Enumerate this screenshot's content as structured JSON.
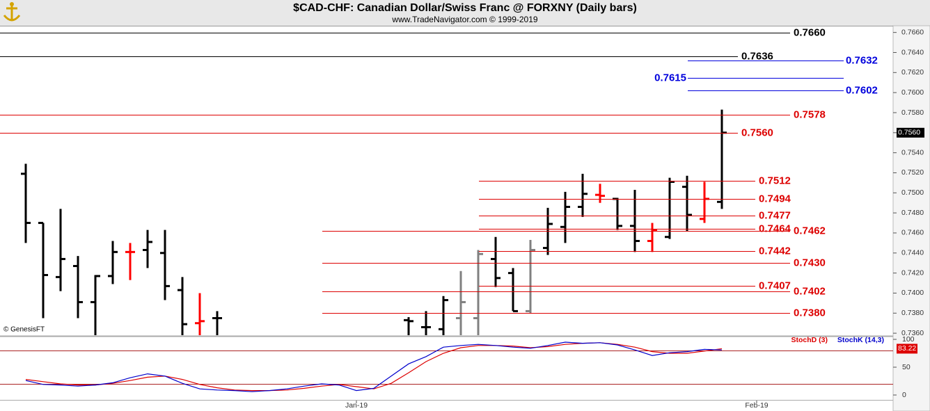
{
  "header": {
    "title": "$CAD-CHF:  Canadian Dollar/Swiss Franc @ FORXNY  (Daily bars)",
    "subtitle": "www.TradeNavigator.com © 1999-2019",
    "watermark": "© GenesisFT"
  },
  "chart_data": [
    {
      "type": "ohlc",
      "open": [
        0.7519,
        0.747,
        0.7416,
        0.7427,
        0.7391,
        0.7417,
        0.7441,
        0.7443,
        0.744,
        0.7403,
        0.737,
        0.7375,
        null,
        null,
        null,
        null,
        null,
        null,
        null,
        null,
        null,
        null,
        0.7373,
        0.7366,
        0.7364,
        0.7375,
        0.7375,
        0.7434,
        0.742,
        0.7382,
        0.7445,
        0.7466,
        0.7486,
        0.7498,
        0.7494,
        0.7467,
        0.7452,
        0.7456,
        0.7506,
        0.7474,
        0.7491,
        null,
        null
      ],
      "high": [
        0.7529,
        0.747,
        0.7484,
        0.7437,
        0.7418,
        0.7452,
        0.745,
        0.7463,
        0.7463,
        0.7416,
        0.74,
        0.7382,
        null,
        null,
        null,
        null,
        null,
        null,
        null,
        null,
        null,
        null,
        0.7376,
        0.7382,
        0.7397,
        0.7422,
        0.7443,
        0.7456,
        0.7425,
        0.7453,
        0.7485,
        0.7501,
        0.7519,
        0.7509,
        0.7495,
        0.7503,
        0.747,
        0.7515,
        0.7517,
        0.7511,
        0.7583,
        null,
        null
      ],
      "low": [
        0.745,
        0.7375,
        0.7402,
        0.7375,
        0.735,
        0.7409,
        0.7413,
        0.7425,
        0.7393,
        0.735,
        0.735,
        0.735,
        null,
        null,
        null,
        null,
        null,
        null,
        null,
        null,
        null,
        null,
        0.735,
        0.735,
        0.735,
        0.735,
        0.735,
        0.7406,
        0.7382,
        0.738,
        0.7438,
        0.745,
        0.7476,
        0.749,
        0.7463,
        0.7441,
        0.7441,
        0.7454,
        0.7462,
        0.747,
        0.7484,
        null,
        null
      ],
      "close": [
        0.747,
        0.7418,
        0.7434,
        0.7391,
        0.7417,
        0.7441,
        0.7441,
        0.7451,
        0.7407,
        0.7369,
        0.7372,
        0.7375,
        null,
        null,
        null,
        null,
        null,
        null,
        null,
        null,
        null,
        null,
        0.7372,
        0.7366,
        0.7393,
        0.7391,
        0.7439,
        0.7415,
        0.7382,
        0.7443,
        0.7469,
        0.7486,
        0.7499,
        0.7497,
        0.7467,
        0.7452,
        0.7463,
        0.7511,
        0.7478,
        0.7494,
        0.756,
        null,
        null
      ],
      "bar_colors": [
        "#000000",
        "#000000",
        "#000000",
        "#000000",
        "#000000",
        "#000000",
        "#ff0000",
        "#000000",
        "#000000",
        "#000000",
        "#ff0000",
        "#000000",
        null,
        null,
        null,
        null,
        null,
        null,
        null,
        null,
        null,
        null,
        "#000000",
        "#000000",
        "#000000",
        "#808080",
        "#808080",
        "#000000",
        "#000000",
        "#808080",
        "#000000",
        "#000000",
        "#000000",
        "#ff0000",
        "#000000",
        "#000000",
        "#ff0000",
        "#000000",
        "#000000",
        "#ff0000",
        "#000000",
        null,
        null
      ],
      "ylim": [
        0.7358,
        0.7666
      ],
      "yticks": [
        {
          "value": 0.766,
          "label": "0.7660"
        },
        {
          "value": 0.764,
          "label": "0.7640"
        },
        {
          "value": 0.762,
          "label": "0.7620"
        },
        {
          "value": 0.76,
          "label": "0.7600"
        },
        {
          "value": 0.758,
          "label": "0.7580"
        },
        {
          "value": 0.756,
          "label": "0.7560"
        },
        {
          "value": 0.754,
          "label": "0.7540"
        },
        {
          "value": 0.752,
          "label": "0.7520"
        },
        {
          "value": 0.75,
          "label": "0.7500"
        },
        {
          "value": 0.748,
          "label": "0.7480"
        },
        {
          "value": 0.746,
          "label": "0.7460"
        },
        {
          "value": 0.744,
          "label": "0.7440"
        },
        {
          "value": 0.742,
          "label": "0.7420"
        },
        {
          "value": 0.74,
          "label": "0.7400"
        },
        {
          "value": 0.738,
          "label": "0.7380"
        },
        {
          "value": 0.736,
          "label": "0.7360"
        }
      ],
      "levels": [
        {
          "value": 0.766,
          "label": "0.7660",
          "color": "#000000"
        },
        {
          "value": 0.7636,
          "label": "0.7636",
          "color": "#000000"
        },
        {
          "value": 0.7632,
          "label": "0.7632",
          "color": "#0000dd"
        },
        {
          "value": 0.7615,
          "label": "0.7615",
          "color": "#0000dd"
        },
        {
          "value": 0.7602,
          "label": "0.7602",
          "color": "#0000dd"
        },
        {
          "value": 0.7578,
          "label": "0.7578",
          "color": "#dd0000"
        },
        {
          "value": 0.756,
          "label": "0.7560",
          "color": "#dd0000"
        },
        {
          "value": 0.7512,
          "label": "0.7512",
          "color": "#dd0000"
        },
        {
          "value": 0.7494,
          "label": "0.7494",
          "color": "#dd0000"
        },
        {
          "value": 0.7477,
          "label": "0.7477",
          "color": "#dd0000"
        },
        {
          "value": 0.7464,
          "label": "0.7464",
          "color": "#dd0000"
        },
        {
          "value": 0.7462,
          "label": "0.7462",
          "color": "#dd0000"
        },
        {
          "value": 0.7442,
          "label": "0.7442",
          "color": "#dd0000"
        },
        {
          "value": 0.743,
          "label": "0.7430",
          "color": "#dd0000"
        },
        {
          "value": 0.7407,
          "label": "0.7407",
          "color": "#dd0000"
        },
        {
          "value": 0.7402,
          "label": "0.7402",
          "color": "#dd0000"
        },
        {
          "value": 0.738,
          "label": "0.7380",
          "color": "#dd0000"
        }
      ],
      "last_price": {
        "value": 0.756,
        "label": "0.7560"
      }
    },
    {
      "type": "line",
      "categories": [
        null,
        null,
        null,
        null,
        null,
        null,
        null,
        null,
        null,
        null,
        null,
        null,
        null,
        null,
        null,
        null,
        null,
        null,
        null,
        "Jan-19",
        null,
        null,
        null,
        null,
        null,
        null,
        null,
        null,
        null,
        null,
        null,
        null,
        null,
        null,
        null,
        null,
        null,
        null,
        null,
        null,
        null,
        null,
        "Feb-19"
      ],
      "series": [
        {
          "name": "StochD (3)",
          "color": "#dd0000",
          "values": [
            28,
            24,
            20,
            18,
            18,
            21,
            26,
            32,
            34,
            28,
            19,
            13,
            9,
            8,
            8,
            9,
            12,
            16,
            19,
            15,
            11,
            21,
            40,
            60,
            75,
            85,
            89,
            89,
            88,
            85,
            87,
            91,
            93,
            94,
            91,
            86,
            78,
            75,
            75,
            79,
            83.22,
            null,
            null
          ]
        },
        {
          "name": "StochK (14,3)",
          "color": "#0000cc",
          "values": [
            26,
            19,
            18,
            16,
            18,
            22,
            31,
            38,
            34,
            21,
            11,
            9,
            8,
            6,
            8,
            11,
            16,
            20,
            18,
            8,
            12,
            34,
            56,
            69,
            86,
            89,
            91,
            89,
            86,
            84,
            89,
            95,
            93,
            94,
            90,
            81,
            71,
            76,
            78,
            82,
            81,
            null,
            null
          ]
        }
      ],
      "ylim": [
        -10,
        105
      ],
      "yticks": [
        100,
        50,
        0
      ],
      "levels": [
        80,
        20
      ]
    }
  ]
}
